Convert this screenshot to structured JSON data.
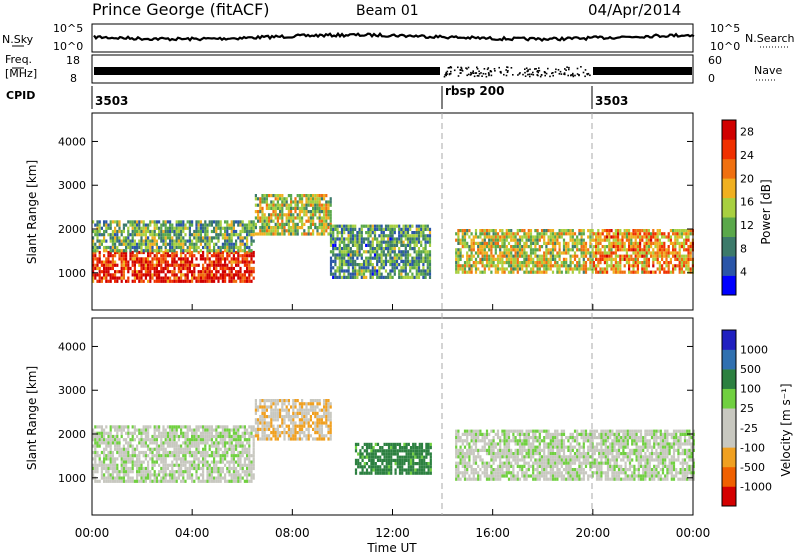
{
  "header": {
    "station": "Prince George (fitACF)",
    "beam": "Beam 01",
    "date": "04/Apr/2014"
  },
  "left_labels": {
    "nsky": "N.Sky",
    "freq": "Freq.",
    "freq_unit": "[MHz]",
    "cpid": "CPID"
  },
  "right_labels": {
    "nsearch": "N.Search",
    "nave": "Nave"
  },
  "strip_ticks": {
    "noise_left": [
      "10^5",
      "10^0"
    ],
    "noise_right": [
      "10^5",
      "10^0"
    ],
    "freq_left": [
      "18",
      "8"
    ],
    "freq_right": [
      "60",
      "0"
    ]
  },
  "cpid_segments": [
    {
      "label": "3503",
      "start_hour": 0
    },
    {
      "label": "rbsp 200",
      "start_hour": 14
    },
    {
      "label": "3503",
      "start_hour": 20
    }
  ],
  "colors": {
    "power": [
      "#0000ff",
      "#2a55a8",
      "#3c7a6a",
      "#5aa84a",
      "#a8d040",
      "#f0b020",
      "#f07010",
      "#f03000",
      "#d00000"
    ],
    "velocity": [
      "#d40000",
      "#f06000",
      "#f0a020",
      "#c8c8c0",
      "#c8c8c0",
      "#70d040",
      "#2c8040",
      "#3070b0",
      "#2020c0"
    ]
  },
  "chart_data": [
    {
      "type": "heatmap",
      "name": "power",
      "xlabel": "",
      "ylabel": "Slant Range [km]",
      "xlim": [
        0,
        24
      ],
      "ylim": [
        150,
        4650
      ],
      "x_ticks": [],
      "y_ticks": [
        "1000",
        "2000",
        "3000",
        "4000"
      ],
      "colorbar": {
        "label": "Power [dB]",
        "ticks": [
          "4",
          "8",
          "12",
          "16",
          "20",
          "24",
          "28"
        ],
        "range": [
          0,
          30
        ]
      },
      "bands": [
        {
          "t0": 0.0,
          "t1": 6.5,
          "r0": 800,
          "r1": 1500,
          "level": 26
        },
        {
          "t0": 0.0,
          "t1": 6.5,
          "r0": 1500,
          "r1": 2200,
          "level": 12
        },
        {
          "t0": 6.5,
          "t1": 9.5,
          "r0": 1900,
          "r1": 2800,
          "level": 15
        },
        {
          "t0": 9.5,
          "t1": 13.5,
          "r0": 900,
          "r1": 2100,
          "level": 10
        },
        {
          "t0": 14.5,
          "t1": 20.0,
          "r0": 1000,
          "r1": 2000,
          "level": 16
        },
        {
          "t0": 20.0,
          "t1": 24.0,
          "r0": 1000,
          "r1": 2000,
          "level": 20
        }
      ]
    },
    {
      "type": "heatmap",
      "name": "velocity",
      "xlabel": "Time UT",
      "ylabel": "Slant Range [km]",
      "xlim": [
        0,
        24
      ],
      "ylim": [
        150,
        4650
      ],
      "x_ticks": [
        "00:00",
        "04:00",
        "08:00",
        "12:00",
        "16:00",
        "20:00",
        "00:00"
      ],
      "y_ticks": [
        "1000",
        "2000",
        "3000",
        "4000"
      ],
      "colorbar": {
        "label": "Velocity [m s⁻¹]",
        "ticks": [
          "-1000",
          "-500",
          "-100",
          "-25",
          "25",
          "100",
          "500",
          "1000"
        ],
        "range": [
          -1200,
          1200
        ]
      },
      "bands": [
        {
          "t0": 0.0,
          "t1": 6.5,
          "r0": 900,
          "r1": 2200,
          "level": 0
        },
        {
          "t0": 6.5,
          "t1": 9.5,
          "r0": 1900,
          "r1": 2800,
          "level": -80
        },
        {
          "t0": 10.5,
          "t1": 13.5,
          "r0": 1100,
          "r1": 1800,
          "level": 150
        },
        {
          "t0": 14.5,
          "t1": 24.0,
          "r0": 1000,
          "r1": 2100,
          "level": 0
        }
      ]
    }
  ]
}
